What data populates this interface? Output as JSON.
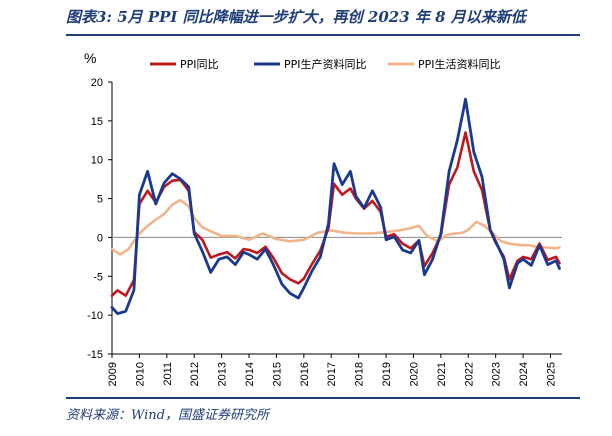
{
  "header": {
    "title": "图表3:  5月 PPI 同比降幅进一步扩大，再创 2023 年 8 月以来新低"
  },
  "footer": {
    "source": "资料来源：Wind，国盛证券研究所"
  },
  "colors": {
    "ppi": "#c0171f",
    "production": "#1a3a8f",
    "living": "#f2b58a",
    "zero_line": "#888888"
  },
  "chart_data": {
    "type": "line",
    "unit_label": "%",
    "ylim": [
      -15,
      20
    ],
    "yticks": [
      -15,
      -10,
      -5,
      0,
      5,
      10,
      15,
      20
    ],
    "xlim": [
      2009.0,
      2025.42
    ],
    "xticks": [
      "2009",
      "2010",
      "2011",
      "2012",
      "2013",
      "2014",
      "2015",
      "2016",
      "2017",
      "2018",
      "2019",
      "2020",
      "2021",
      "2022",
      "2023",
      "2024",
      "2025"
    ],
    "grid": false,
    "legend_position": "top",
    "series": [
      {
        "name": "PPI同比",
        "x": [
          2009.0,
          2009.2,
          2009.5,
          2009.8,
          2010.0,
          2010.3,
          2010.6,
          2010.9,
          2011.2,
          2011.5,
          2011.8,
          2012.0,
          2012.3,
          2012.6,
          2012.9,
          2013.2,
          2013.5,
          2013.8,
          2014.0,
          2014.3,
          2014.6,
          2014.9,
          2015.2,
          2015.5,
          2015.8,
          2016.0,
          2016.3,
          2016.6,
          2016.9,
          2017.1,
          2017.4,
          2017.7,
          2017.9,
          2018.2,
          2018.5,
          2018.8,
          2019.0,
          2019.3,
          2019.6,
          2019.9,
          2020.2,
          2020.4,
          2020.7,
          2021.0,
          2021.3,
          2021.6,
          2021.8,
          2021.9,
          2022.2,
          2022.5,
          2022.8,
          2023.0,
          2023.3,
          2023.5,
          2023.8,
          2024.0,
          2024.3,
          2024.6,
          2024.9,
          2025.2,
          2025.33
        ],
        "values": [
          -7.5,
          -6.8,
          -7.5,
          -5.5,
          4.3,
          6.0,
          4.5,
          6.5,
          7.3,
          7.4,
          6.0,
          0.7,
          -0.3,
          -2.6,
          -2.2,
          -1.9,
          -2.7,
          -1.5,
          -1.6,
          -2.0,
          -1.2,
          -2.7,
          -4.6,
          -5.4,
          -5.9,
          -5.3,
          -3.4,
          -1.7,
          1.2,
          6.9,
          5.5,
          6.3,
          5.0,
          3.7,
          4.7,
          3.3,
          0.1,
          0.4,
          -0.8,
          -1.4,
          -0.4,
          -3.7,
          -2.0,
          0.3,
          6.8,
          9.0,
          12.0,
          13.5,
          8.5,
          6.1,
          0.9,
          -0.7,
          -2.5,
          -5.4,
          -3.0,
          -2.5,
          -2.8,
          -0.8,
          -2.9,
          -2.5,
          -3.3
        ]
      },
      {
        "name": "PPI生产资料同比",
        "x": [
          2009.0,
          2009.2,
          2009.5,
          2009.8,
          2010.0,
          2010.3,
          2010.6,
          2010.9,
          2011.2,
          2011.5,
          2011.8,
          2012.0,
          2012.3,
          2012.6,
          2012.9,
          2013.2,
          2013.5,
          2013.8,
          2014.0,
          2014.3,
          2014.6,
          2014.9,
          2015.2,
          2015.5,
          2015.8,
          2016.0,
          2016.3,
          2016.6,
          2016.9,
          2017.1,
          2017.4,
          2017.7,
          2017.9,
          2018.2,
          2018.5,
          2018.8,
          2019.0,
          2019.3,
          2019.6,
          2019.9,
          2020.2,
          2020.4,
          2020.7,
          2021.0,
          2021.3,
          2021.6,
          2021.8,
          2021.9,
          2022.2,
          2022.5,
          2022.8,
          2023.0,
          2023.3,
          2023.5,
          2023.8,
          2024.0,
          2024.3,
          2024.6,
          2024.9,
          2025.2,
          2025.33
        ],
        "values": [
          -9.0,
          -9.8,
          -9.5,
          -6.8,
          5.5,
          8.5,
          4.3,
          7.0,
          8.2,
          7.5,
          6.5,
          0.5,
          -1.8,
          -4.5,
          -2.8,
          -2.5,
          -3.5,
          -1.9,
          -2.2,
          -2.8,
          -1.5,
          -3.6,
          -6.0,
          -7.2,
          -7.8,
          -6.5,
          -4.3,
          -2.5,
          1.8,
          9.5,
          6.8,
          8.5,
          5.3,
          3.8,
          6.0,
          3.9,
          -0.3,
          0.1,
          -1.6,
          -2.0,
          -0.4,
          -4.8,
          -2.8,
          0.5,
          8.5,
          12.5,
          16.0,
          17.8,
          11.0,
          7.8,
          1.0,
          -0.5,
          -2.8,
          -6.5,
          -3.3,
          -2.8,
          -3.6,
          -1.0,
          -3.5,
          -3.0,
          -4.0
        ]
      },
      {
        "name": "PPI生活资料同比",
        "x": [
          2009.0,
          2009.3,
          2009.6,
          2010.0,
          2010.3,
          2010.6,
          2010.9,
          2011.2,
          2011.5,
          2011.8,
          2012.0,
          2012.3,
          2012.6,
          2013.0,
          2013.5,
          2014.0,
          2014.5,
          2015.0,
          2015.5,
          2016.0,
          2016.5,
          2017.0,
          2017.5,
          2018.0,
          2018.5,
          2019.0,
          2019.5,
          2019.9,
          2020.2,
          2020.5,
          2020.9,
          2021.2,
          2021.5,
          2021.8,
          2022.0,
          2022.3,
          2022.6,
          2022.9,
          2023.2,
          2023.5,
          2023.9,
          2024.2,
          2024.5,
          2024.9,
          2025.2,
          2025.33
        ],
        "values": [
          -1.5,
          -2.2,
          -1.5,
          0.5,
          1.5,
          2.3,
          3.0,
          4.2,
          4.8,
          4.0,
          2.5,
          1.3,
          0.8,
          0.2,
          0.2,
          -0.3,
          0.5,
          -0.2,
          -0.5,
          -0.3,
          0.6,
          0.9,
          0.6,
          0.5,
          0.5,
          0.7,
          0.9,
          1.2,
          1.5,
          0.2,
          -0.5,
          0.3,
          0.5,
          0.6,
          1.0,
          2.0,
          1.5,
          0.5,
          -0.5,
          -0.8,
          -1.0,
          -1.0,
          -1.2,
          -1.3,
          -1.4,
          -1.3
        ]
      }
    ]
  }
}
